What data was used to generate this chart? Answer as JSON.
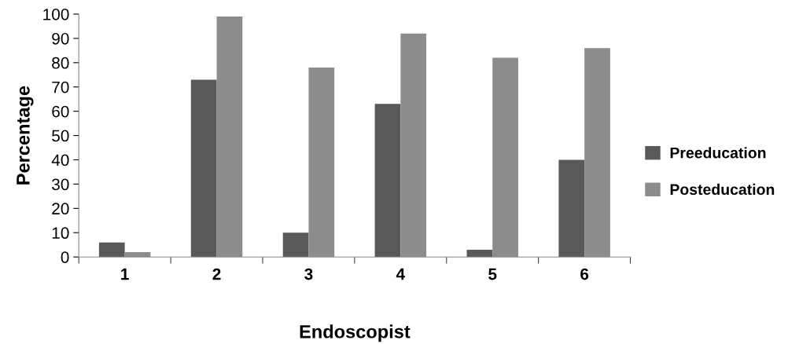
{
  "chart_data": {
    "type": "bar",
    "xlabel": "Endoscopist",
    "ylabel": "Percentage",
    "categories": [
      "1",
      "2",
      "3",
      "4",
      "5",
      "6"
    ],
    "series": [
      {
        "name": "Preeducation",
        "color": "#595959",
        "values": [
          6,
          73,
          10,
          63,
          3,
          40
        ]
      },
      {
        "name": "Posteducation",
        "color": "#8c8c8c",
        "values": [
          2,
          99,
          78,
          92,
          82,
          86
        ]
      }
    ],
    "ylim": [
      0,
      100
    ],
    "yticks": [
      0,
      10,
      20,
      30,
      40,
      50,
      60,
      70,
      80,
      90,
      100
    ],
    "legend": "right",
    "grid": false
  }
}
